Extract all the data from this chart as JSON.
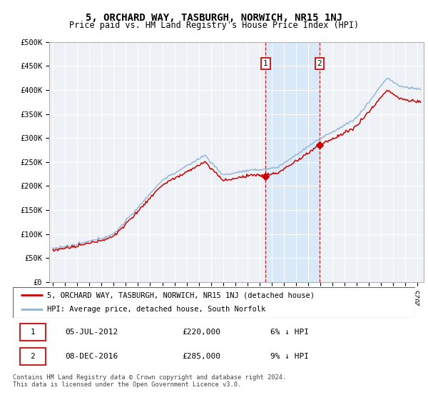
{
  "title": "5, ORCHARD WAY, TASBURGH, NORWICH, NR15 1NJ",
  "subtitle": "Price paid vs. HM Land Registry's House Price Index (HPI)",
  "ylabel_ticks": [
    "£0",
    "£50K",
    "£100K",
    "£150K",
    "£200K",
    "£250K",
    "£300K",
    "£350K",
    "£400K",
    "£450K",
    "£500K"
  ],
  "ytick_values": [
    0,
    50000,
    100000,
    150000,
    200000,
    250000,
    300000,
    350000,
    400000,
    450000,
    500000
  ],
  "ylim": [
    0,
    500000
  ],
  "hpi_color": "#92b4d4",
  "price_color": "#cc0000",
  "transaction1_date": 2012.5,
  "transaction1_price": 220000,
  "transaction1_label": "1",
  "transaction2_date": 2016.92,
  "transaction2_price": 285000,
  "transaction2_label": "2",
  "legend_line1": "5, ORCHARD WAY, TASBURGH, NORWICH, NR15 1NJ (detached house)",
  "legend_line2": "HPI: Average price, detached house, South Norfolk",
  "table_row1": [
    "1",
    "05-JUL-2012",
    "£220,000",
    "6% ↓ HPI"
  ],
  "table_row2": [
    "2",
    "08-DEC-2016",
    "£285,000",
    "9% ↓ HPI"
  ],
  "footnote": "Contains HM Land Registry data © Crown copyright and database right 2024.\nThis data is licensed under the Open Government Licence v3.0.",
  "plot_bg_color": "#eef2f7",
  "shade_color": "#d6e8f7"
}
